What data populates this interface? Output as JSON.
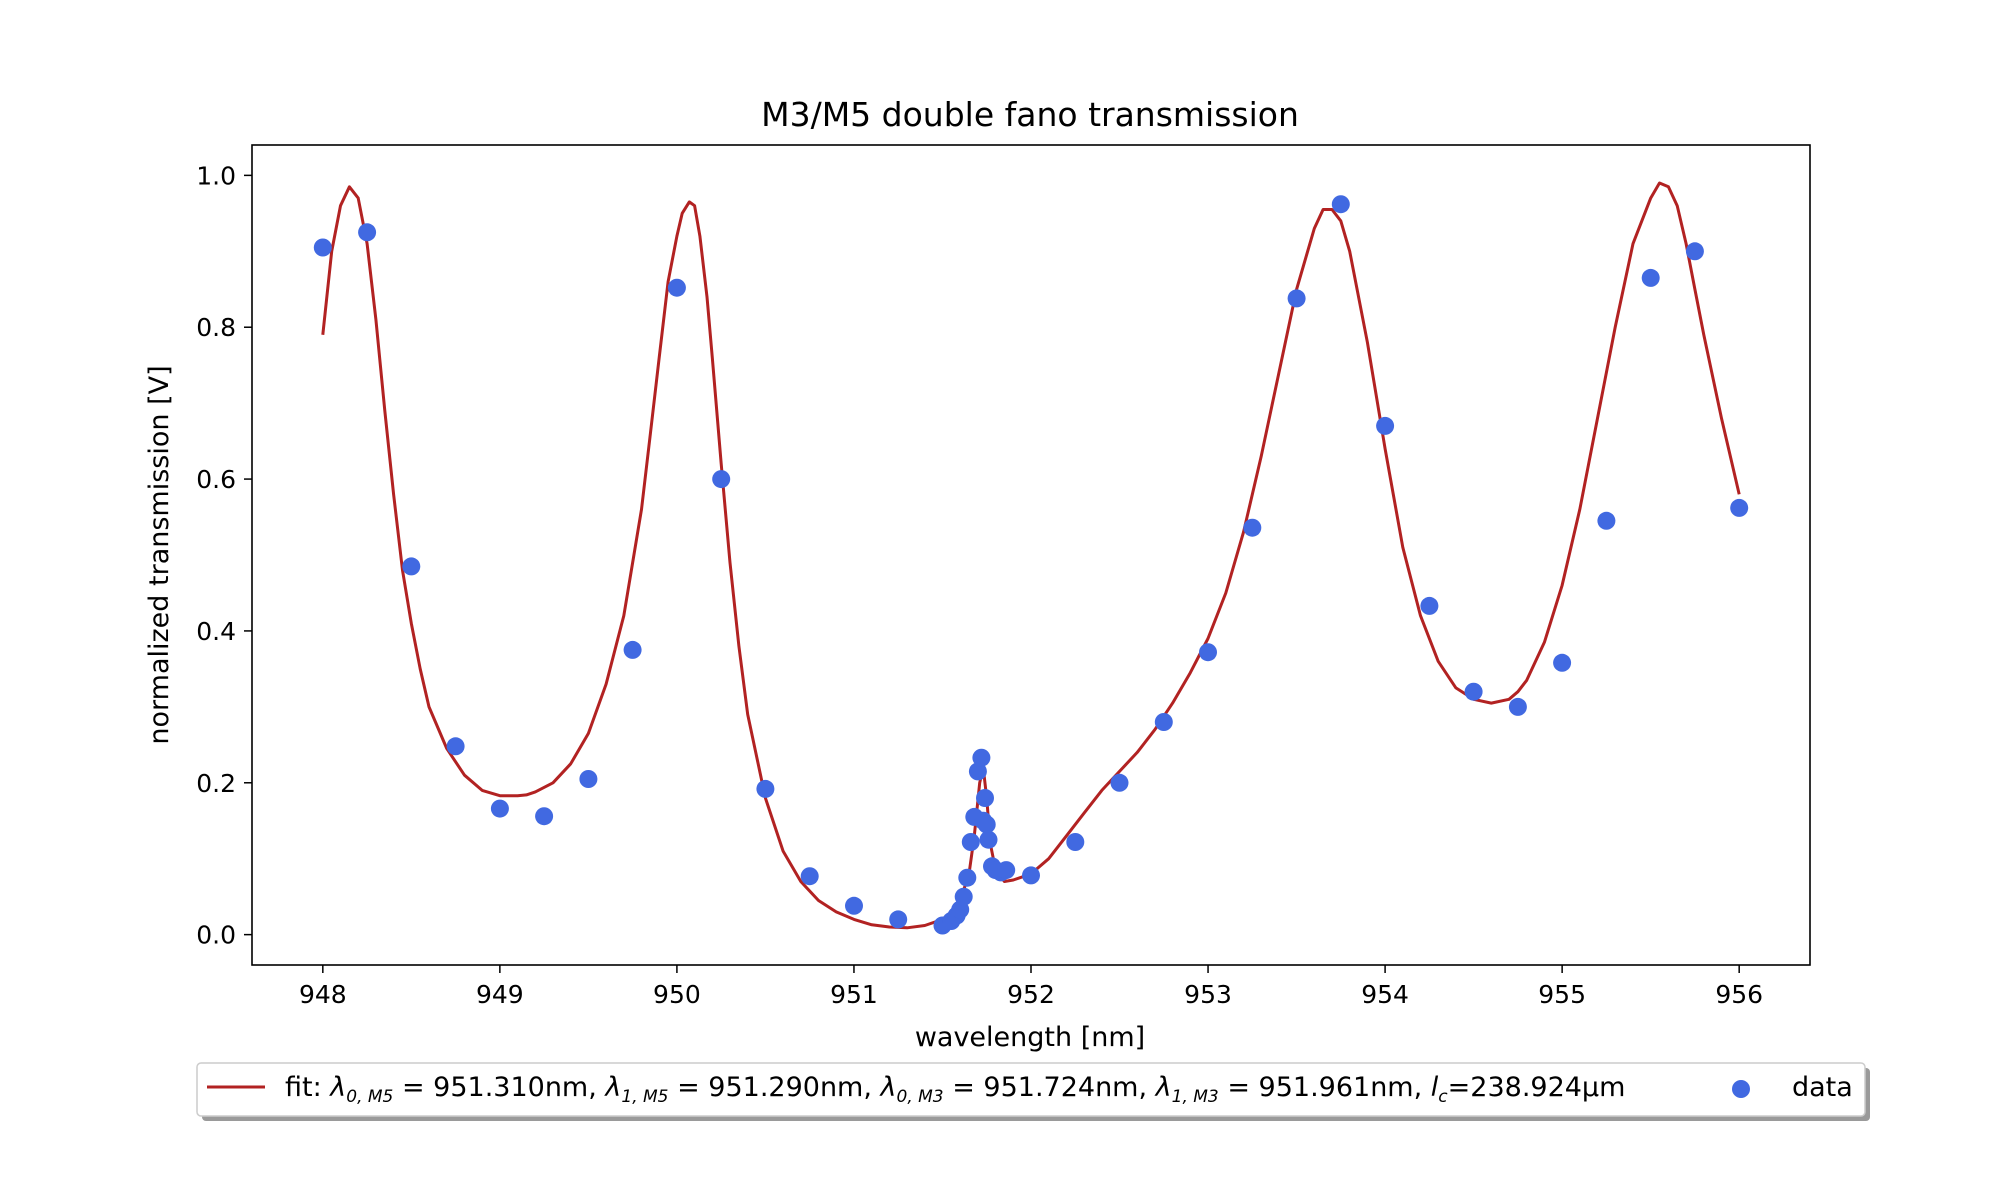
{
  "chart_data": {
    "type": "scatter",
    "title": "M3/M5 double fano transmission",
    "xlabel": "wavelength [nm]",
    "ylabel": "normalized transmission [V]",
    "xlim": [
      947.6,
      956.4
    ],
    "ylim": [
      -0.04,
      1.04
    ],
    "xticks": [
      948,
      949,
      950,
      951,
      952,
      953,
      954,
      955,
      956
    ],
    "yticks": [
      0.0,
      0.2,
      0.4,
      0.6,
      0.8,
      1.0
    ],
    "xtick_labels": [
      "948",
      "949",
      "950",
      "951",
      "952",
      "953",
      "954",
      "955",
      "956"
    ],
    "ytick_labels": [
      "0.0",
      "0.2",
      "0.4",
      "0.6",
      "0.8",
      "1.0"
    ],
    "grid": false,
    "legend_position": "bottom-center",
    "series": [
      {
        "name": "fit",
        "kind": "line",
        "color": "#b22222",
        "x": [
          948.0,
          948.05,
          948.1,
          948.15,
          948.2,
          948.25,
          948.3,
          948.35,
          948.4,
          948.45,
          948.5,
          948.55,
          948.6,
          948.7,
          948.8,
          948.9,
          949.0,
          949.1,
          949.15,
          949.2,
          949.3,
          949.4,
          949.5,
          949.6,
          949.7,
          949.8,
          949.85,
          949.9,
          949.95,
          950.0,
          950.03,
          950.07,
          950.1,
          950.13,
          950.17,
          950.2,
          950.25,
          950.3,
          950.35,
          950.4,
          950.5,
          950.6,
          950.7,
          950.8,
          950.9,
          951.0,
          951.1,
          951.2,
          951.3,
          951.4,
          951.5,
          951.55,
          951.6,
          951.65,
          951.68,
          951.71,
          951.73,
          951.75,
          951.77,
          951.8,
          951.85,
          951.9,
          952.0,
          952.1,
          952.2,
          952.3,
          952.4,
          952.5,
          952.6,
          952.7,
          952.8,
          952.9,
          953.0,
          953.1,
          953.2,
          953.3,
          953.4,
          953.5,
          953.6,
          953.65,
          953.7,
          953.75,
          953.8,
          953.9,
          954.0,
          954.1,
          954.2,
          954.3,
          954.4,
          954.5,
          954.6,
          954.7,
          954.75,
          954.8,
          954.9,
          955.0,
          955.1,
          955.2,
          955.3,
          955.4,
          955.5,
          955.55,
          955.6,
          955.65,
          955.7,
          955.75,
          955.8,
          955.9,
          956.0
        ],
        "y": [
          0.79,
          0.9,
          0.96,
          0.985,
          0.97,
          0.91,
          0.81,
          0.69,
          0.58,
          0.48,
          0.41,
          0.35,
          0.3,
          0.245,
          0.21,
          0.19,
          0.183,
          0.183,
          0.184,
          0.188,
          0.2,
          0.225,
          0.265,
          0.33,
          0.42,
          0.56,
          0.66,
          0.76,
          0.86,
          0.92,
          0.95,
          0.965,
          0.96,
          0.92,
          0.84,
          0.76,
          0.62,
          0.49,
          0.38,
          0.29,
          0.18,
          0.11,
          0.07,
          0.045,
          0.03,
          0.02,
          0.013,
          0.01,
          0.009,
          0.012,
          0.02,
          0.03,
          0.045,
          0.08,
          0.13,
          0.2,
          0.22,
          0.18,
          0.12,
          0.085,
          0.07,
          0.072,
          0.08,
          0.1,
          0.13,
          0.16,
          0.19,
          0.215,
          0.24,
          0.27,
          0.305,
          0.345,
          0.39,
          0.45,
          0.53,
          0.63,
          0.74,
          0.85,
          0.93,
          0.955,
          0.955,
          0.94,
          0.9,
          0.78,
          0.64,
          0.51,
          0.42,
          0.36,
          0.325,
          0.31,
          0.305,
          0.31,
          0.32,
          0.335,
          0.385,
          0.46,
          0.56,
          0.68,
          0.8,
          0.91,
          0.97,
          0.99,
          0.985,
          0.96,
          0.91,
          0.85,
          0.79,
          0.68,
          0.58
        ]
      },
      {
        "name": "data",
        "kind": "scatter",
        "color": "#4169e1",
        "x": [
          948.0,
          948.25,
          948.5,
          948.75,
          949.0,
          949.25,
          949.5,
          949.75,
          950.0,
          950.25,
          950.5,
          950.75,
          951.0,
          951.25,
          951.5,
          951.55,
          951.58,
          951.6,
          951.62,
          951.64,
          951.66,
          951.68,
          951.7,
          951.72,
          951.73,
          951.74,
          951.75,
          951.76,
          951.78,
          951.8,
          951.83,
          951.86,
          952.0,
          952.25,
          952.5,
          952.75,
          953.0,
          953.25,
          953.5,
          953.75,
          954.0,
          954.25,
          954.5,
          954.75,
          955.0,
          955.25,
          955.5,
          955.75,
          956.0
        ],
        "y": [
          0.905,
          0.925,
          0.485,
          0.248,
          0.166,
          0.156,
          0.205,
          0.375,
          0.852,
          0.6,
          0.192,
          0.077,
          0.038,
          0.02,
          0.012,
          0.018,
          0.025,
          0.033,
          0.05,
          0.075,
          0.122,
          0.155,
          0.215,
          0.233,
          0.15,
          0.18,
          0.145,
          0.125,
          0.09,
          0.085,
          0.082,
          0.085,
          0.078,
          0.122,
          0.2,
          0.28,
          0.372,
          0.536,
          0.838,
          0.962,
          0.67,
          0.433,
          0.32,
          0.3,
          0.358,
          0.545,
          0.865,
          0.9,
          0.562
        ]
      }
    ],
    "legend": {
      "fit_label": {
        "prefix": "fit: ",
        "l0m5_sym": "λ",
        "l0m5_sub": "0, M5",
        "l0m5_val": " = 951.310nm, ",
        "l1m5_sym": "λ",
        "l1m5_sub": "1, M5",
        "l1m5_val": " = 951.290nm, ",
        "l0m3_sym": "λ",
        "l0m3_sub": "0, M3",
        "l0m3_val": " = 951.724nm, ",
        "l1m3_sym": "λ",
        "l1m3_sub": "1, M3",
        "l1m3_val": " = 951.961nm, ",
        "lc_sym": "l",
        "lc_sub": "c",
        "lc_val": "=238.924μm"
      },
      "data_label": "data"
    }
  }
}
